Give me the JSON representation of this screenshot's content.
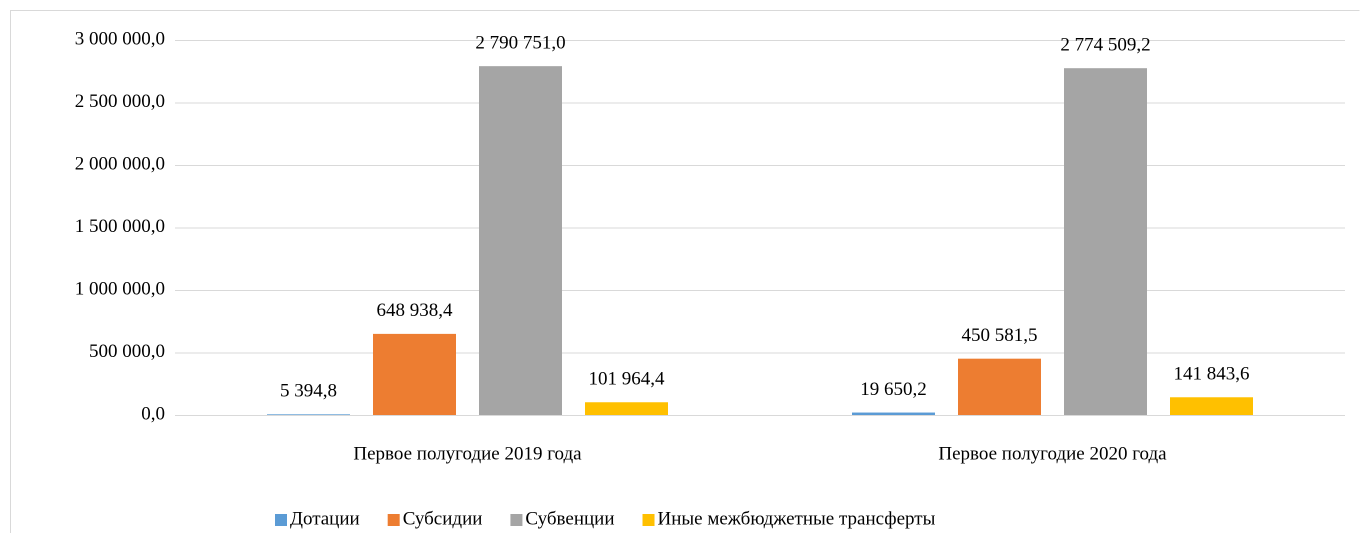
{
  "chart_data": {
    "type": "bar",
    "categories": [
      "Первое полугодие 2019 года",
      "Первое полугодие 2020 года"
    ],
    "series": [
      {
        "name": "Дотации",
        "color": "#5b9bd5",
        "values": [
          5394.8,
          19650.2
        ],
        "value_labels": [
          "5 394,8",
          "19 650,2"
        ]
      },
      {
        "name": "Субсидии",
        "color": "#ed7d31",
        "values": [
          648938.4,
          450581.5
        ],
        "value_labels": [
          "648 938,4",
          "450 581,5"
        ]
      },
      {
        "name": "Субвенции",
        "color": "#a5a5a5",
        "values": [
          2790751.0,
          2774509.2
        ],
        "value_labels": [
          "2 790 751,0",
          "2 774 509,2"
        ]
      },
      {
        "name": "Иные межбюджетные трансферты",
        "color": "#ffc000",
        "values": [
          101964.4,
          141843.6
        ],
        "value_labels": [
          "101 964,4",
          "141 843,6"
        ]
      }
    ],
    "ylim": [
      0,
      3000000
    ],
    "yticks": [
      {
        "value": 0,
        "label": "0,0"
      },
      {
        "value": 500000,
        "label": "500 000,0"
      },
      {
        "value": 1000000,
        "label": "1 000 000,0"
      },
      {
        "value": 1500000,
        "label": "1 500 000,0"
      },
      {
        "value": 2000000,
        "label": "2 000 000,0"
      },
      {
        "value": 2500000,
        "label": "2 500 000,0"
      },
      {
        "value": 3000000,
        "label": "3 000 000,0"
      }
    ],
    "grid": true,
    "legend": "bottom"
  }
}
